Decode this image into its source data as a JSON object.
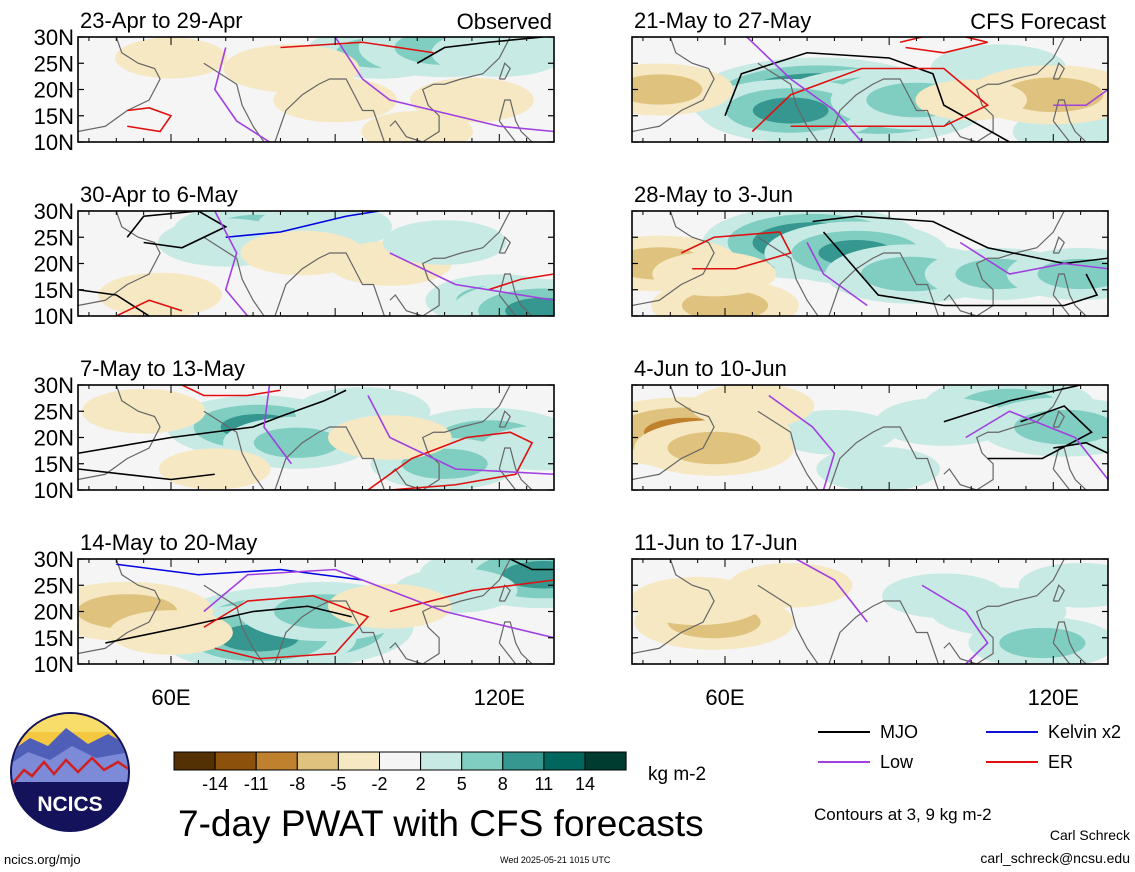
{
  "chart_data": {
    "type": "heatmap",
    "variable": "7-day PWAT",
    "units": "kg m-2",
    "title": "7-day PWAT with CFS forecasts",
    "columns": [
      {
        "label": "Observed",
        "periods": [
          "23-Apr to 29-Apr",
          "30-Apr to 6-May",
          "7-May to 13-May",
          "14-May to 20-May"
        ]
      },
      {
        "label": "CFS Forecast",
        "periods": [
          "21-May to 27-May",
          "28-May to 3-Jun",
          "4-Jun to 10-Jun",
          "11-Jun to 17-Jun"
        ]
      }
    ],
    "y_ticks": [
      "30N",
      "25N",
      "20N",
      "15N",
      "10N"
    ],
    "x_ticks": [
      {
        "lon": 60,
        "label": "60E"
      },
      {
        "lon": 120,
        "label": "120E"
      }
    ],
    "xlim": [
      43,
      130
    ],
    "ylim": [
      10,
      30
    ],
    "colorbar": {
      "labels": [
        "-14",
        "-11",
        "-8",
        "-5",
        "-2",
        "2",
        "5",
        "8",
        "11",
        "14"
      ],
      "colors": [
        "#543005",
        "#8c510a",
        "#bf812d",
        "#dfc27d",
        "#f6e8c3",
        "#f5f5f5",
        "#c7eae5",
        "#80cdc1",
        "#35978f",
        "#01665e",
        "#003c30"
      ]
    },
    "legend": [
      {
        "label": "MJO",
        "color": "#000000"
      },
      {
        "label": "Kelvin x2",
        "color": "#1010d0"
      },
      {
        "label": "Low",
        "color": "#a040e0"
      },
      {
        "label": "ER",
        "color": "#e01010"
      }
    ],
    "contour_note": "Contours at 3, 9 kg m-2",
    "panels": [
      {
        "blobs": [
          {
            "lon": 98,
            "lat": 27,
            "v": 5
          },
          {
            "lon": 110,
            "lat": 28,
            "v": 7
          },
          {
            "lon": 120,
            "lat": 27,
            "v": 4
          },
          {
            "lon": 82,
            "lat": 24,
            "v": -4
          },
          {
            "lon": 90,
            "lat": 18,
            "v": -3
          },
          {
            "lon": 115,
            "lat": 18,
            "v": -3
          },
          {
            "lon": 60,
            "lat": 26,
            "v": -2
          },
          {
            "lon": 105,
            "lat": 12,
            "v": -2
          }
        ]
      },
      {
        "blobs": [
          {
            "lon": 76,
            "lat": 26,
            "v": 7
          },
          {
            "lon": 88,
            "lat": 27,
            "v": 4
          },
          {
            "lon": 70,
            "lat": 24,
            "v": 4
          },
          {
            "lon": 120,
            "lat": 13,
            "v": 5
          },
          {
            "lon": 128,
            "lat": 11,
            "v": 8
          },
          {
            "lon": 58,
            "lat": 14,
            "v": -3
          },
          {
            "lon": 100,
            "lat": 20,
            "v": -3
          },
          {
            "lon": 84,
            "lat": 22,
            "v": -3
          },
          {
            "lon": 110,
            "lat": 24,
            "v": 3
          }
        ]
      },
      {
        "blobs": [
          {
            "lon": 76,
            "lat": 22,
            "v": 8
          },
          {
            "lon": 83,
            "lat": 19,
            "v": 5
          },
          {
            "lon": 118,
            "lat": 20,
            "v": 7
          },
          {
            "lon": 110,
            "lat": 15,
            "v": 5
          },
          {
            "lon": 95,
            "lat": 25,
            "v": 4
          },
          {
            "lon": 128,
            "lat": 18,
            "v": 3
          },
          {
            "lon": 55,
            "lat": 25,
            "v": -3
          },
          {
            "lon": 100,
            "lat": 20,
            "v": -3
          },
          {
            "lon": 68,
            "lat": 14,
            "v": -2
          }
        ]
      },
      {
        "blobs": [
          {
            "lon": 82,
            "lat": 17,
            "v": 13
          },
          {
            "lon": 76,
            "lat": 15,
            "v": 9
          },
          {
            "lon": 88,
            "lat": 20,
            "v": 7
          },
          {
            "lon": 120,
            "lat": 27,
            "v": 6
          },
          {
            "lon": 128,
            "lat": 27,
            "v": 9
          },
          {
            "lon": 112,
            "lat": 24,
            "v": 3
          },
          {
            "lon": 52,
            "lat": 20,
            "v": -7
          },
          {
            "lon": 60,
            "lat": 16,
            "v": -3
          },
          {
            "lon": 100,
            "lat": 21,
            "v": -3
          }
        ]
      },
      {
        "blobs": [
          {
            "lon": 77,
            "lat": 18,
            "v": 14
          },
          {
            "lon": 88,
            "lat": 17,
            "v": 11
          },
          {
            "lon": 72,
            "lat": 16,
            "v": 8
          },
          {
            "lon": 95,
            "lat": 18,
            "v": 7
          },
          {
            "lon": 110,
            "lat": 24,
            "v": 4
          },
          {
            "lon": 125,
            "lat": 12,
            "v": 4
          },
          {
            "lon": 120,
            "lat": 19,
            "v": -7
          },
          {
            "lon": 48,
            "lat": 20,
            "v": -5
          },
          {
            "lon": 105,
            "lat": 18,
            "v": -2
          }
        ]
      },
      {
        "blobs": [
          {
            "lon": 76,
            "lat": 24,
            "v": 11
          },
          {
            "lon": 84,
            "lat": 22,
            "v": 8
          },
          {
            "lon": 94,
            "lat": 18,
            "v": 7
          },
          {
            "lon": 110,
            "lat": 18,
            "v": 5
          },
          {
            "lon": 125,
            "lat": 18,
            "v": 5
          },
          {
            "lon": 48,
            "lat": 20,
            "v": -6
          },
          {
            "lon": 60,
            "lat": 12,
            "v": -5
          },
          {
            "lon": 58,
            "lat": 18,
            "v": -3
          }
        ]
      },
      {
        "blobs": [
          {
            "lon": 112,
            "lat": 26,
            "v": 7
          },
          {
            "lon": 122,
            "lat": 22,
            "v": 7
          },
          {
            "lon": 100,
            "lat": 23,
            "v": 4
          },
          {
            "lon": 80,
            "lat": 21,
            "v": 3
          },
          {
            "lon": 88,
            "lat": 14,
            "v": 3
          },
          {
            "lon": 53,
            "lat": 21,
            "v": -10
          },
          {
            "lon": 58,
            "lat": 18,
            "v": -6
          },
          {
            "lon": 65,
            "lat": 26,
            "v": -3
          }
        ]
      },
      {
        "blobs": [
          {
            "lon": 110,
            "lat": 20,
            "v": 4
          },
          {
            "lon": 118,
            "lat": 14,
            "v": 5
          },
          {
            "lon": 100,
            "lat": 23,
            "v": 3
          },
          {
            "lon": 125,
            "lat": 25,
            "v": 3
          },
          {
            "lon": 58,
            "lat": 18,
            "v": -6
          },
          {
            "lon": 55,
            "lat": 22,
            "v": -4
          },
          {
            "lon": 72,
            "lat": 25,
            "v": -3
          }
        ]
      }
    ]
  },
  "logo": {
    "text": "NCICS"
  },
  "footer": {
    "left_url": "ncics.org/mjo",
    "timestamp": "Wed 2025-05-21 1015 UTC",
    "author": "Carl Schreck",
    "email": "carl_schreck@ncsu.edu"
  }
}
